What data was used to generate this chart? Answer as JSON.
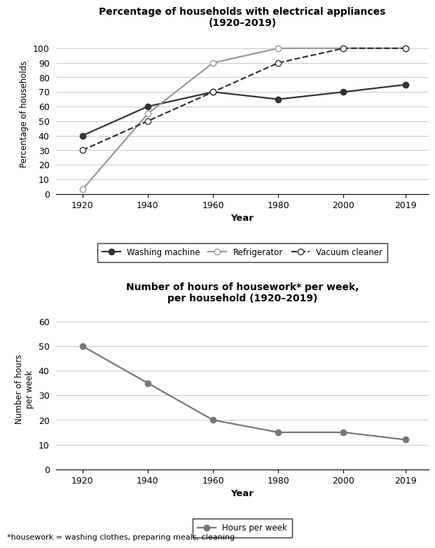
{
  "years": [
    1920,
    1940,
    1960,
    1980,
    2000,
    2019
  ],
  "washing_machine": [
    40,
    60,
    70,
    65,
    70,
    75
  ],
  "refrigerator": [
    3,
    55,
    90,
    100,
    100,
    100
  ],
  "vacuum_cleaner": [
    30,
    50,
    70,
    90,
    100,
    100
  ],
  "hours_per_week": [
    50,
    35,
    20,
    15,
    15,
    12
  ],
  "chart1_title": "Percentage of households with electrical appliances\n(1920–2019)",
  "chart1_ylabel": "Percentage of households",
  "chart1_xlabel": "Year",
  "chart1_ylim": [
    0,
    110
  ],
  "chart1_yticks": [
    0,
    10,
    20,
    30,
    40,
    50,
    60,
    70,
    80,
    90,
    100
  ],
  "chart2_title": "Number of hours of housework* per week,\nper household (1920–2019)",
  "chart2_ylabel": "Number of hours\nper week",
  "chart2_xlabel": "Year",
  "chart2_ylim": [
    0,
    65
  ],
  "chart2_yticks": [
    0,
    10,
    20,
    30,
    40,
    50,
    60
  ],
  "washing_color": "#333333",
  "refrigerator_color": "#999999",
  "vacuum_color": "#333333",
  "hours_color": "#777777",
  "footnote": "*housework = washing clothes, preparing meals, cleaning"
}
